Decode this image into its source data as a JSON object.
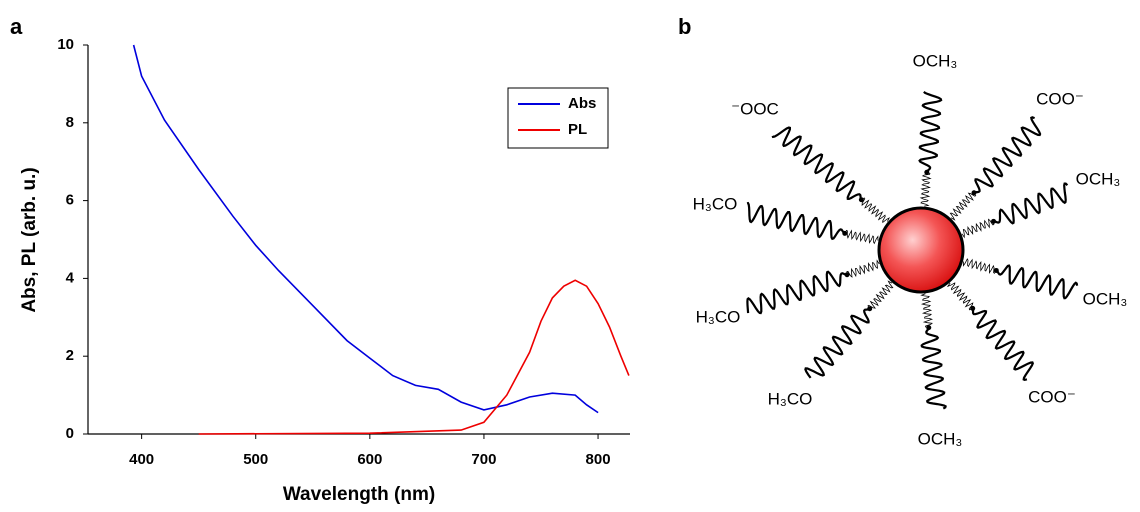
{
  "panel_labels": [
    "a",
    "b"
  ],
  "chart_data": {
    "type": "line",
    "x_label": "Wavelength (nm)",
    "y_label": "Abs, PL (arb. u.)",
    "xlim": [
      353,
      828
    ],
    "xticks": [
      400,
      500,
      600,
      700,
      800
    ],
    "ylim": [
      0,
      10
    ],
    "yticks": [
      0,
      2,
      4,
      6,
      8,
      10
    ],
    "legend": "top-right",
    "series": [
      {
        "name": "Abs",
        "color": "#0000dd",
        "x": [
          393,
          400,
          420,
          450,
          480,
          500,
          520,
          550,
          580,
          600,
          620,
          640,
          660,
          680,
          700,
          720,
          740,
          760,
          780,
          790,
          800
        ],
        "values": [
          10,
          9.2,
          8.07,
          6.8,
          5.6,
          4.85,
          4.2,
          3.3,
          2.4,
          1.95,
          1.5,
          1.25,
          1.15,
          0.82,
          0.62,
          0.75,
          0.95,
          1.05,
          1.0,
          0.75,
          0.55
        ]
      },
      {
        "name": "PL",
        "color": "#ee0000",
        "x": [
          450,
          600,
          680,
          700,
          720,
          740,
          750,
          760,
          770,
          780,
          790,
          800,
          810,
          820,
          827
        ],
        "values": [
          0,
          0.02,
          0.1,
          0.3,
          1.0,
          2.1,
          2.9,
          3.5,
          3.8,
          3.95,
          3.8,
          3.35,
          2.75,
          2.0,
          1.5
        ]
      }
    ]
  },
  "diagram": {
    "labels": [
      "OCH₃",
      "⁻OOC",
      "COO⁻",
      "OCH₃",
      "H₃CO",
      "OCH₃",
      "H₃CO",
      "H₃CO",
      "COO⁻",
      "OCH₃"
    ]
  }
}
